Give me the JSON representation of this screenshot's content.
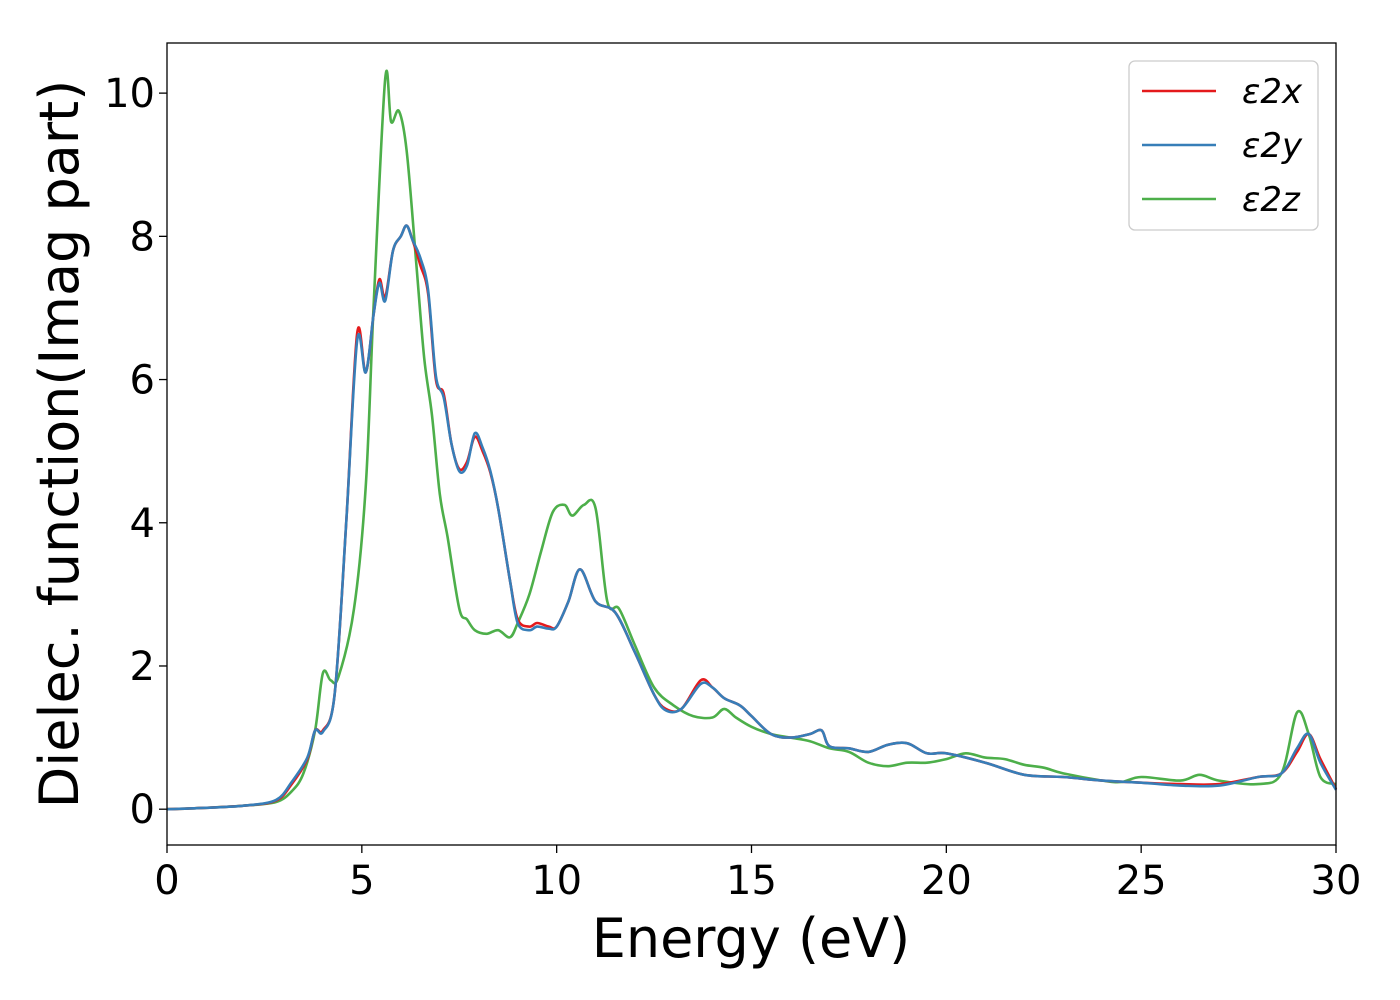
{
  "chart_data": {
    "type": "line",
    "title": "",
    "xlabel": "Energy (eV)",
    "ylabel": "Dielec. function(Imag part)",
    "xlim": [
      0,
      30
    ],
    "ylim": [
      -0.5,
      10.7
    ],
    "xticks": [
      0,
      5,
      10,
      15,
      20,
      25,
      30
    ],
    "yticks": [
      0,
      2,
      4,
      6,
      8,
      10
    ],
    "grid": false,
    "legend_position": "top-right",
    "series": [
      {
        "name": "ε2x",
        "color": "#e41a1c",
        "points": [
          [
            0,
            0
          ],
          [
            1,
            0.02
          ],
          [
            2,
            0.05
          ],
          [
            2.8,
            0.12
          ],
          [
            3.2,
            0.35
          ],
          [
            3.6,
            0.7
          ],
          [
            3.8,
            1.1
          ],
          [
            4.0,
            1.1
          ],
          [
            4.3,
            1.6
          ],
          [
            4.6,
            4.0
          ],
          [
            4.88,
            6.65
          ],
          [
            5.1,
            6.1
          ],
          [
            5.3,
            6.9
          ],
          [
            5.45,
            7.4
          ],
          [
            5.6,
            7.15
          ],
          [
            5.8,
            7.8
          ],
          [
            6.0,
            8.0
          ],
          [
            6.15,
            8.15
          ],
          [
            6.3,
            7.95
          ],
          [
            6.5,
            7.6
          ],
          [
            6.7,
            7.2
          ],
          [
            6.9,
            6.0
          ],
          [
            7.1,
            5.8
          ],
          [
            7.3,
            5.1
          ],
          [
            7.5,
            4.75
          ],
          [
            7.7,
            4.85
          ],
          [
            7.9,
            5.2
          ],
          [
            8.1,
            5.0
          ],
          [
            8.3,
            4.7
          ],
          [
            8.5,
            4.2
          ],
          [
            8.8,
            3.2
          ],
          [
            9.0,
            2.65
          ],
          [
            9.3,
            2.55
          ],
          [
            9.5,
            2.6
          ],
          [
            9.8,
            2.55
          ],
          [
            10.0,
            2.55
          ],
          [
            10.3,
            2.9
          ],
          [
            10.6,
            3.35
          ],
          [
            11.0,
            2.9
          ],
          [
            11.5,
            2.75
          ],
          [
            12.0,
            2.2
          ],
          [
            12.5,
            1.6
          ],
          [
            12.8,
            1.4
          ],
          [
            13.2,
            1.4
          ],
          [
            13.7,
            1.8
          ],
          [
            14.0,
            1.7
          ],
          [
            14.3,
            1.55
          ],
          [
            14.7,
            1.45
          ],
          [
            15.0,
            1.3
          ],
          [
            15.5,
            1.05
          ],
          [
            16.0,
            1.0
          ],
          [
            16.5,
            1.05
          ],
          [
            16.8,
            1.1
          ],
          [
            17.0,
            0.88
          ],
          [
            17.5,
            0.85
          ],
          [
            18.0,
            0.8
          ],
          [
            18.5,
            0.9
          ],
          [
            19.0,
            0.92
          ],
          [
            19.5,
            0.78
          ],
          [
            20.0,
            0.78
          ],
          [
            21.0,
            0.65
          ],
          [
            22.0,
            0.48
          ],
          [
            23.0,
            0.45
          ],
          [
            24.0,
            0.4
          ],
          [
            25.0,
            0.37
          ],
          [
            26.0,
            0.35
          ],
          [
            27.0,
            0.35
          ],
          [
            28.0,
            0.45
          ],
          [
            28.6,
            0.5
          ],
          [
            29.0,
            0.8
          ],
          [
            29.3,
            1.05
          ],
          [
            29.6,
            0.7
          ],
          [
            30.0,
            0.28
          ]
        ]
      },
      {
        "name": "ε2y",
        "color": "#377eb8",
        "points": [
          [
            0,
            0
          ],
          [
            1,
            0.02
          ],
          [
            2,
            0.05
          ],
          [
            2.8,
            0.13
          ],
          [
            3.2,
            0.38
          ],
          [
            3.6,
            0.72
          ],
          [
            3.8,
            1.1
          ],
          [
            4.0,
            1.08
          ],
          [
            4.3,
            1.6
          ],
          [
            4.6,
            4.0
          ],
          [
            4.88,
            6.55
          ],
          [
            5.1,
            6.1
          ],
          [
            5.3,
            6.9
          ],
          [
            5.45,
            7.35
          ],
          [
            5.6,
            7.1
          ],
          [
            5.8,
            7.8
          ],
          [
            6.0,
            8.0
          ],
          [
            6.15,
            8.15
          ],
          [
            6.3,
            7.95
          ],
          [
            6.5,
            7.7
          ],
          [
            6.7,
            7.25
          ],
          [
            6.9,
            6.05
          ],
          [
            7.1,
            5.75
          ],
          [
            7.3,
            5.1
          ],
          [
            7.5,
            4.72
          ],
          [
            7.7,
            4.8
          ],
          [
            7.9,
            5.25
          ],
          [
            8.1,
            5.05
          ],
          [
            8.3,
            4.72
          ],
          [
            8.5,
            4.2
          ],
          [
            8.8,
            3.2
          ],
          [
            9.0,
            2.6
          ],
          [
            9.3,
            2.5
          ],
          [
            9.5,
            2.55
          ],
          [
            9.8,
            2.52
          ],
          [
            10.0,
            2.55
          ],
          [
            10.3,
            2.9
          ],
          [
            10.6,
            3.35
          ],
          [
            11.0,
            2.9
          ],
          [
            11.5,
            2.75
          ],
          [
            12.0,
            2.2
          ],
          [
            12.5,
            1.6
          ],
          [
            12.8,
            1.38
          ],
          [
            13.2,
            1.4
          ],
          [
            13.7,
            1.75
          ],
          [
            14.0,
            1.7
          ],
          [
            14.3,
            1.55
          ],
          [
            14.7,
            1.45
          ],
          [
            15.0,
            1.3
          ],
          [
            15.5,
            1.05
          ],
          [
            16.0,
            1.0
          ],
          [
            16.5,
            1.05
          ],
          [
            16.8,
            1.1
          ],
          [
            17.0,
            0.88
          ],
          [
            17.5,
            0.85
          ],
          [
            18.0,
            0.8
          ],
          [
            18.5,
            0.9
          ],
          [
            19.0,
            0.92
          ],
          [
            19.5,
            0.78
          ],
          [
            20.0,
            0.78
          ],
          [
            21.0,
            0.65
          ],
          [
            22.0,
            0.48
          ],
          [
            23.0,
            0.45
          ],
          [
            24.0,
            0.4
          ],
          [
            25.0,
            0.37
          ],
          [
            26.0,
            0.33
          ],
          [
            27.0,
            0.33
          ],
          [
            28.0,
            0.45
          ],
          [
            28.6,
            0.5
          ],
          [
            29.0,
            0.85
          ],
          [
            29.3,
            1.05
          ],
          [
            29.6,
            0.65
          ],
          [
            30.0,
            0.27
          ]
        ]
      },
      {
        "name": "ε2z",
        "color": "#4daf4a",
        "points": [
          [
            0,
            0
          ],
          [
            1,
            0.02
          ],
          [
            2,
            0.05
          ],
          [
            2.8,
            0.1
          ],
          [
            3.2,
            0.25
          ],
          [
            3.5,
            0.5
          ],
          [
            3.8,
            1.1
          ],
          [
            4.0,
            1.9
          ],
          [
            4.2,
            1.8
          ],
          [
            4.4,
            1.85
          ],
          [
            4.8,
            2.8
          ],
          [
            5.1,
            4.5
          ],
          [
            5.3,
            7.0
          ],
          [
            5.6,
            10.2
          ],
          [
            5.75,
            9.6
          ],
          [
            5.95,
            9.75
          ],
          [
            6.15,
            9.2
          ],
          [
            6.4,
            7.6
          ],
          [
            6.6,
            6.3
          ],
          [
            6.8,
            5.5
          ],
          [
            7.0,
            4.4
          ],
          [
            7.2,
            3.8
          ],
          [
            7.5,
            2.8
          ],
          [
            7.7,
            2.65
          ],
          [
            7.9,
            2.5
          ],
          [
            8.2,
            2.45
          ],
          [
            8.5,
            2.5
          ],
          [
            8.8,
            2.4
          ],
          [
            9.0,
            2.6
          ],
          [
            9.3,
            3.0
          ],
          [
            9.6,
            3.6
          ],
          [
            9.9,
            4.15
          ],
          [
            10.2,
            4.25
          ],
          [
            10.4,
            4.1
          ],
          [
            10.7,
            4.25
          ],
          [
            11.0,
            4.2
          ],
          [
            11.3,
            2.9
          ],
          [
            11.6,
            2.8
          ],
          [
            12.0,
            2.3
          ],
          [
            12.5,
            1.7
          ],
          [
            13.0,
            1.45
          ],
          [
            13.5,
            1.3
          ],
          [
            14.0,
            1.28
          ],
          [
            14.3,
            1.4
          ],
          [
            14.6,
            1.28
          ],
          [
            15.0,
            1.15
          ],
          [
            15.5,
            1.05
          ],
          [
            16.0,
            1.0
          ],
          [
            16.5,
            0.95
          ],
          [
            17.0,
            0.85
          ],
          [
            17.5,
            0.8
          ],
          [
            18.0,
            0.65
          ],
          [
            18.5,
            0.6
          ],
          [
            19.0,
            0.65
          ],
          [
            19.5,
            0.65
          ],
          [
            20.0,
            0.7
          ],
          [
            20.5,
            0.78
          ],
          [
            21.0,
            0.72
          ],
          [
            21.5,
            0.7
          ],
          [
            22.0,
            0.62
          ],
          [
            22.5,
            0.58
          ],
          [
            23.0,
            0.5
          ],
          [
            24.0,
            0.4
          ],
          [
            24.5,
            0.38
          ],
          [
            25.0,
            0.45
          ],
          [
            26.0,
            0.4
          ],
          [
            26.5,
            0.48
          ],
          [
            27.0,
            0.4
          ],
          [
            28.0,
            0.35
          ],
          [
            28.6,
            0.5
          ],
          [
            29.0,
            1.35
          ],
          [
            29.3,
            1.05
          ],
          [
            29.6,
            0.45
          ],
          [
            30.0,
            0.35
          ]
        ]
      }
    ]
  }
}
